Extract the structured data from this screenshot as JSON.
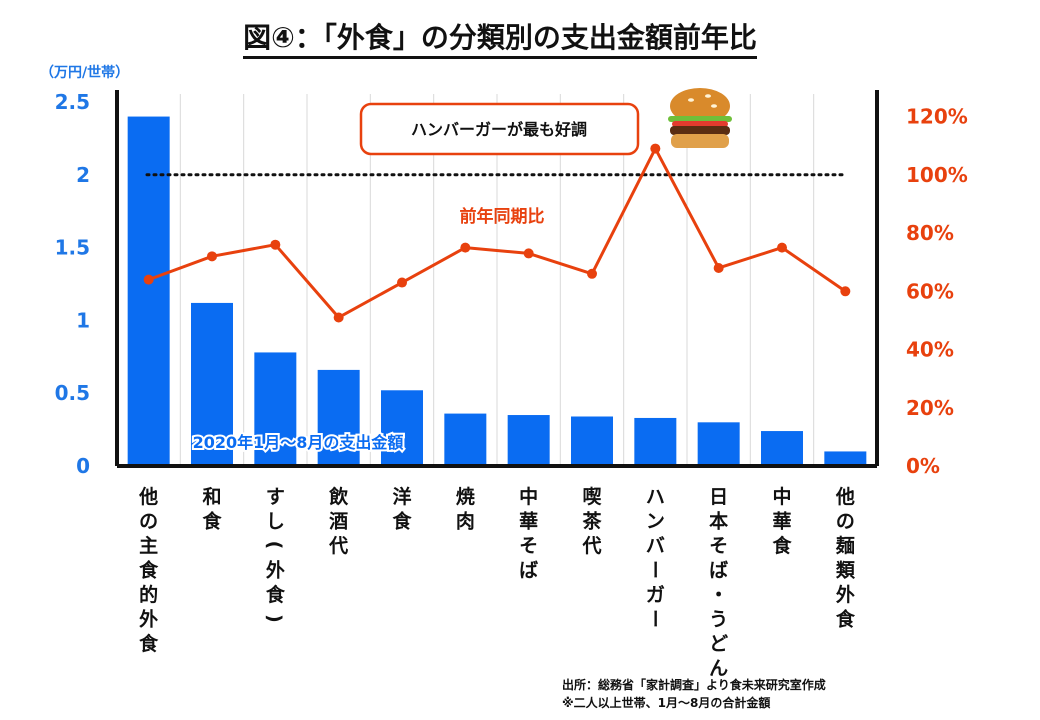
{
  "title": "図④：「外食」の分類別の支出金額前年比",
  "left_axis_unit": "（万円/世帯）",
  "annotation_box": "ハンバーガーが最も好調",
  "line_label": "前年同期比",
  "bar_label": "2020年1月～8月の支出金額",
  "source_lines": [
    "出所：総務省「家計調査」より食未来研究室作成",
    "※二人以上世帯、1月～8月の合計金額"
  ],
  "icons": {
    "burger": "hamburger-icon"
  },
  "colors": {
    "bar": "#0a6cf2",
    "line": "#e8410e",
    "left_axis": "#1f77e6",
    "right_axis": "#e8410e"
  },
  "chart_data": {
    "type": "bar",
    "title": "「外食」の分類別の支出金額前年比",
    "categories": [
      "他の主食的外食",
      "和食",
      "すし(外食)",
      "飲酒代",
      "洋食",
      "焼肉",
      "中華そば",
      "喫茶代",
      "ハンバーガー",
      "日本そば・うどん",
      "中華食",
      "他の麺類外食"
    ],
    "series": [
      {
        "name": "2020年1月～8月の支出金額",
        "axis": "left",
        "type": "bar",
        "values": [
          2.4,
          1.12,
          0.78,
          0.66,
          0.52,
          0.36,
          0.35,
          0.34,
          0.33,
          0.3,
          0.24,
          0.1
        ]
      },
      {
        "name": "前年同期比",
        "axis": "right",
        "type": "line",
        "values": [
          64,
          72,
          76,
          51,
          63,
          75,
          73,
          66,
          109,
          68,
          75,
          60
        ]
      }
    ],
    "ylim_left": [
      0,
      2.5
    ],
    "yticks_left": [
      "0",
      "0.5",
      "1",
      "1.5",
      "2",
      "2.5"
    ],
    "ylim_right": [
      0,
      125
    ],
    "yticks_right": [
      "0%",
      "20%",
      "40%",
      "60%",
      "80%",
      "100%",
      "120%"
    ],
    "reference_line": {
      "axis": "right",
      "value": 100,
      "style": "dotted"
    },
    "ylabel": "（万円/世帯）"
  }
}
